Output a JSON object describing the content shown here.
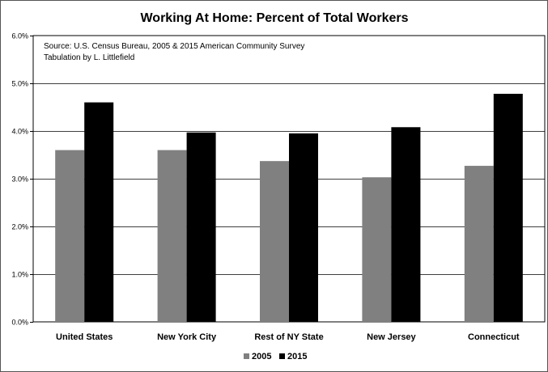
{
  "chart_data": {
    "type": "bar",
    "title": "Working At Home:  Percent of Total Workers",
    "categories": [
      "United States",
      "New York City",
      "Rest of NY State",
      "New Jersey",
      "Connecticut"
    ],
    "series": [
      {
        "name": "2005",
        "values": [
          3.6,
          3.6,
          3.37,
          3.03,
          3.27
        ],
        "color": "#808080"
      },
      {
        "name": "2015",
        "values": [
          4.6,
          3.97,
          3.95,
          4.08,
          4.78
        ],
        "color": "#000000"
      }
    ],
    "ylim": [
      0,
      6
    ],
    "yticks": [
      0,
      1,
      2,
      3,
      4,
      5,
      6
    ],
    "ytick_labels": [
      "0.0%",
      "1.0%",
      "2.0%",
      "3.0%",
      "4.0%",
      "5.0%",
      "6.0%"
    ],
    "xlabel": "",
    "ylabel": "",
    "grid": true,
    "legend_position": "bottom",
    "annotations": [
      "Source:  U.S. Census Bureau, 2005 & 2015 American Community Survey",
      "Tabulation by L. Littlefield"
    ]
  }
}
